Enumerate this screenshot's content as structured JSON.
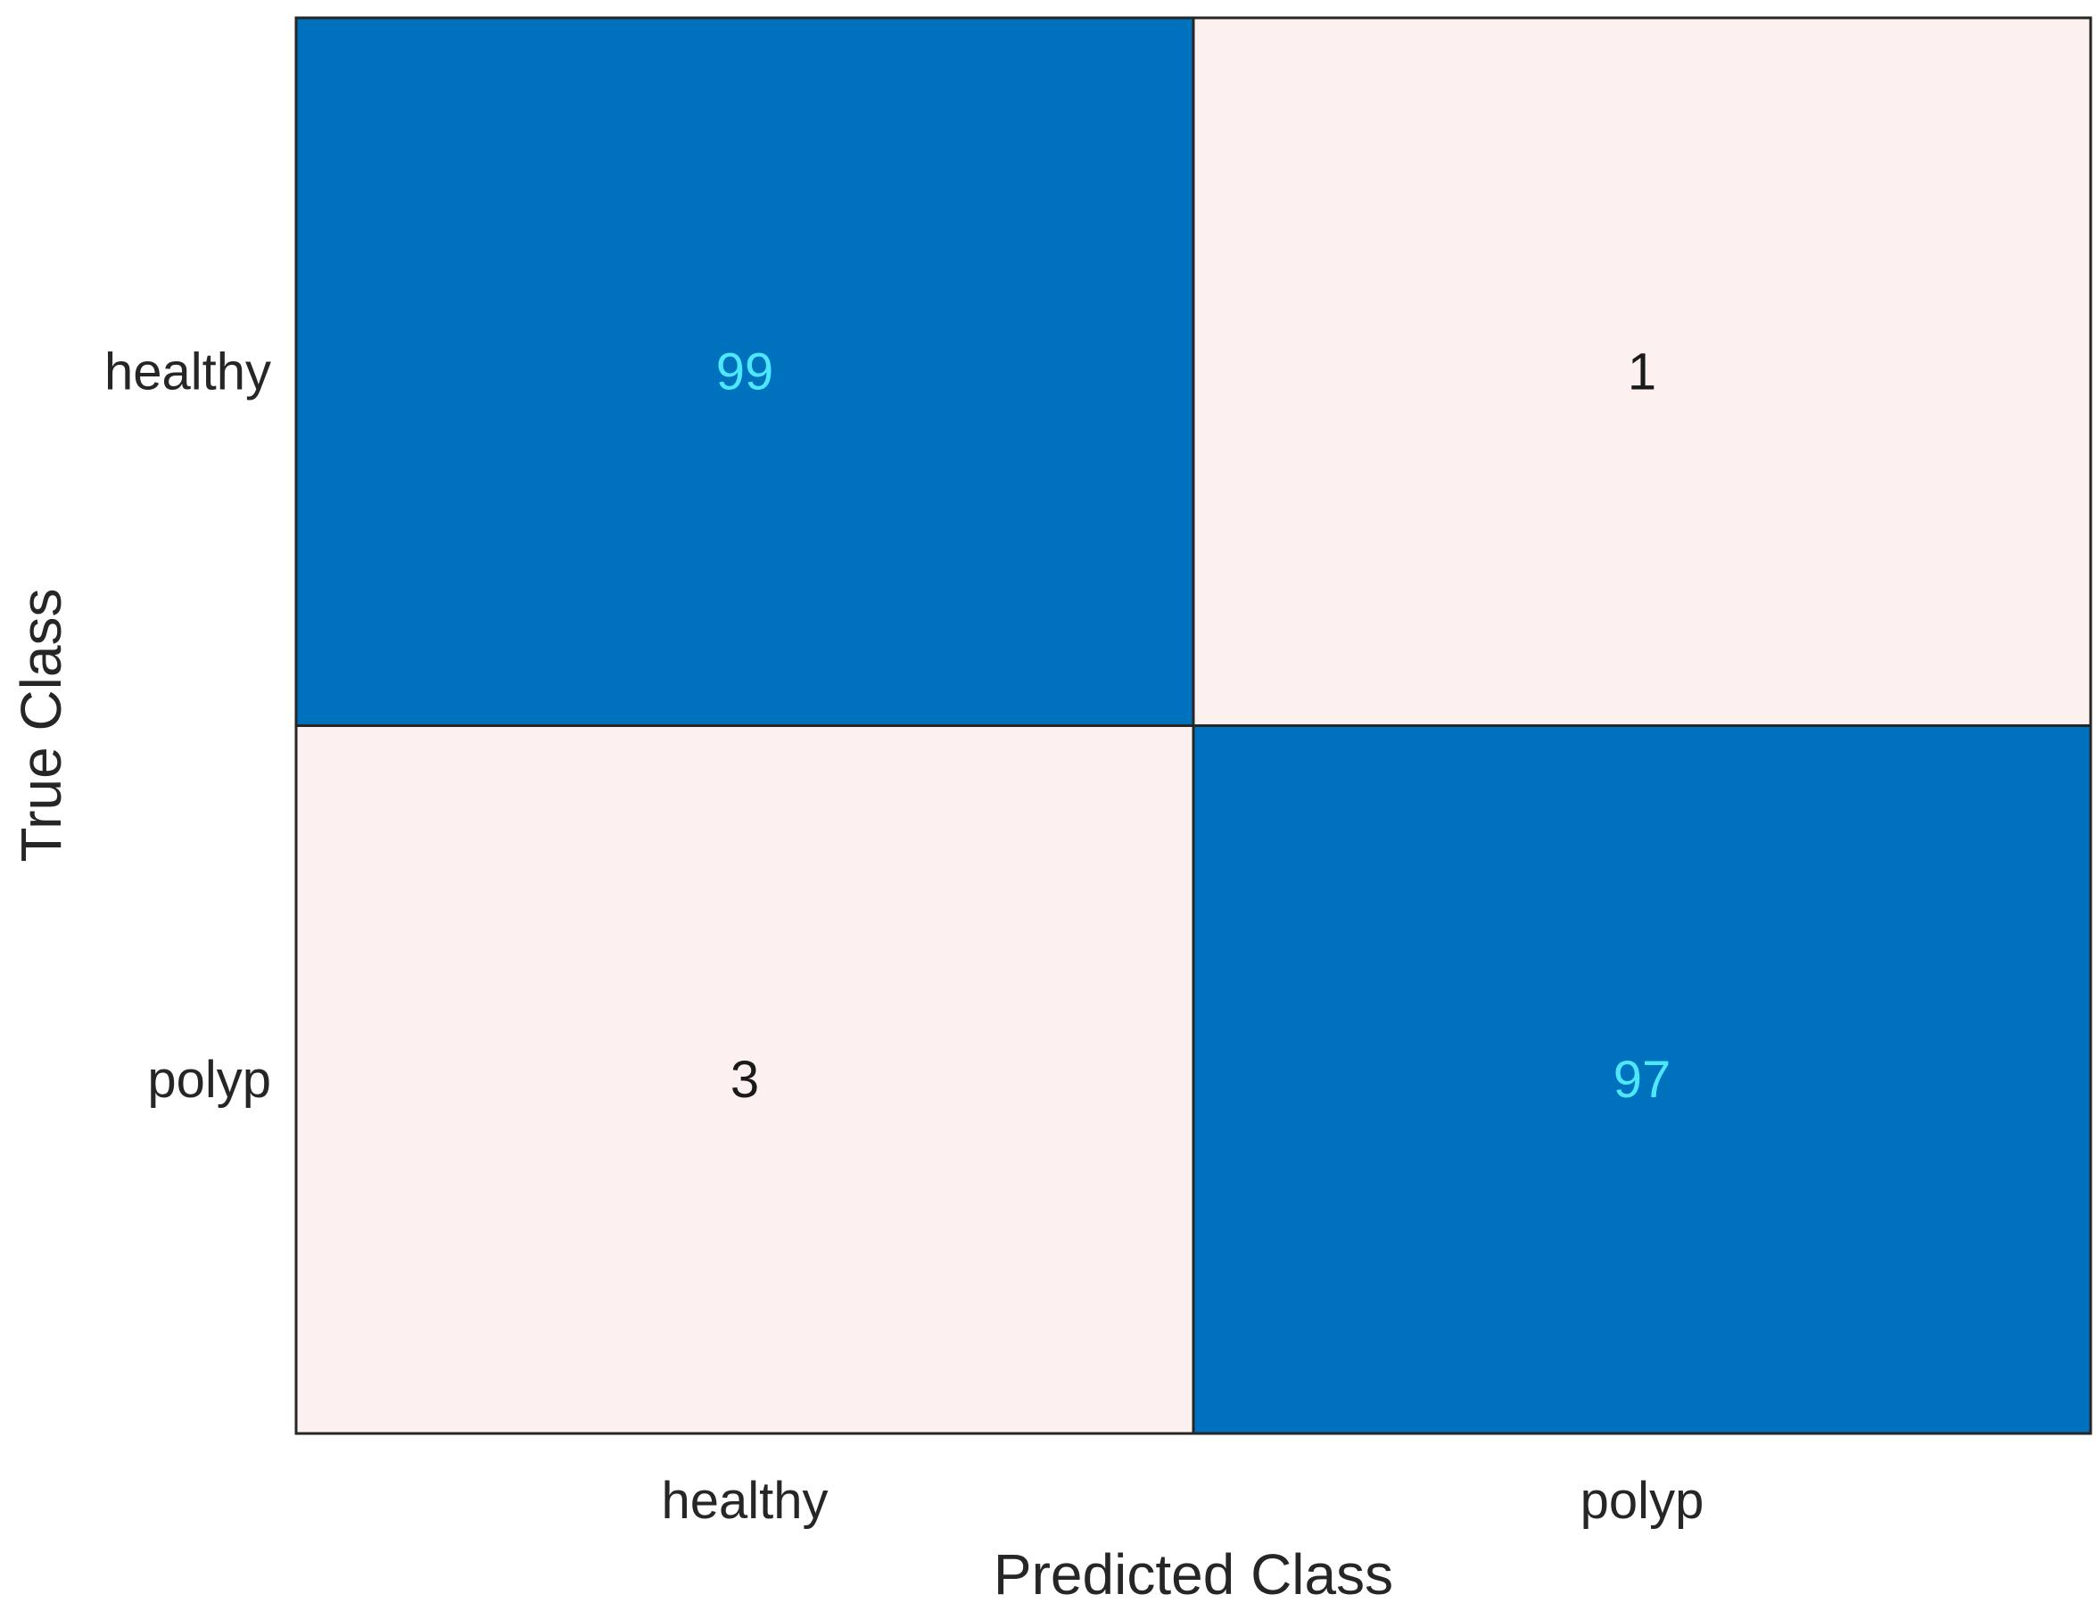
{
  "chart_data": {
    "type": "heatmap",
    "title": "",
    "xlabel": "Predicted Class",
    "ylabel": "True Class",
    "x_categories": [
      "healthy",
      "polyp"
    ],
    "y_categories": [
      "healthy",
      "polyp"
    ],
    "matrix": [
      [
        99,
        1
      ],
      [
        3,
        97
      ]
    ],
    "colors": {
      "high": "#0072BD",
      "low": "#FDF1EF",
      "high_text": "#4DE8FF",
      "low_text": "#1A1A1A",
      "border": "#262626"
    }
  }
}
